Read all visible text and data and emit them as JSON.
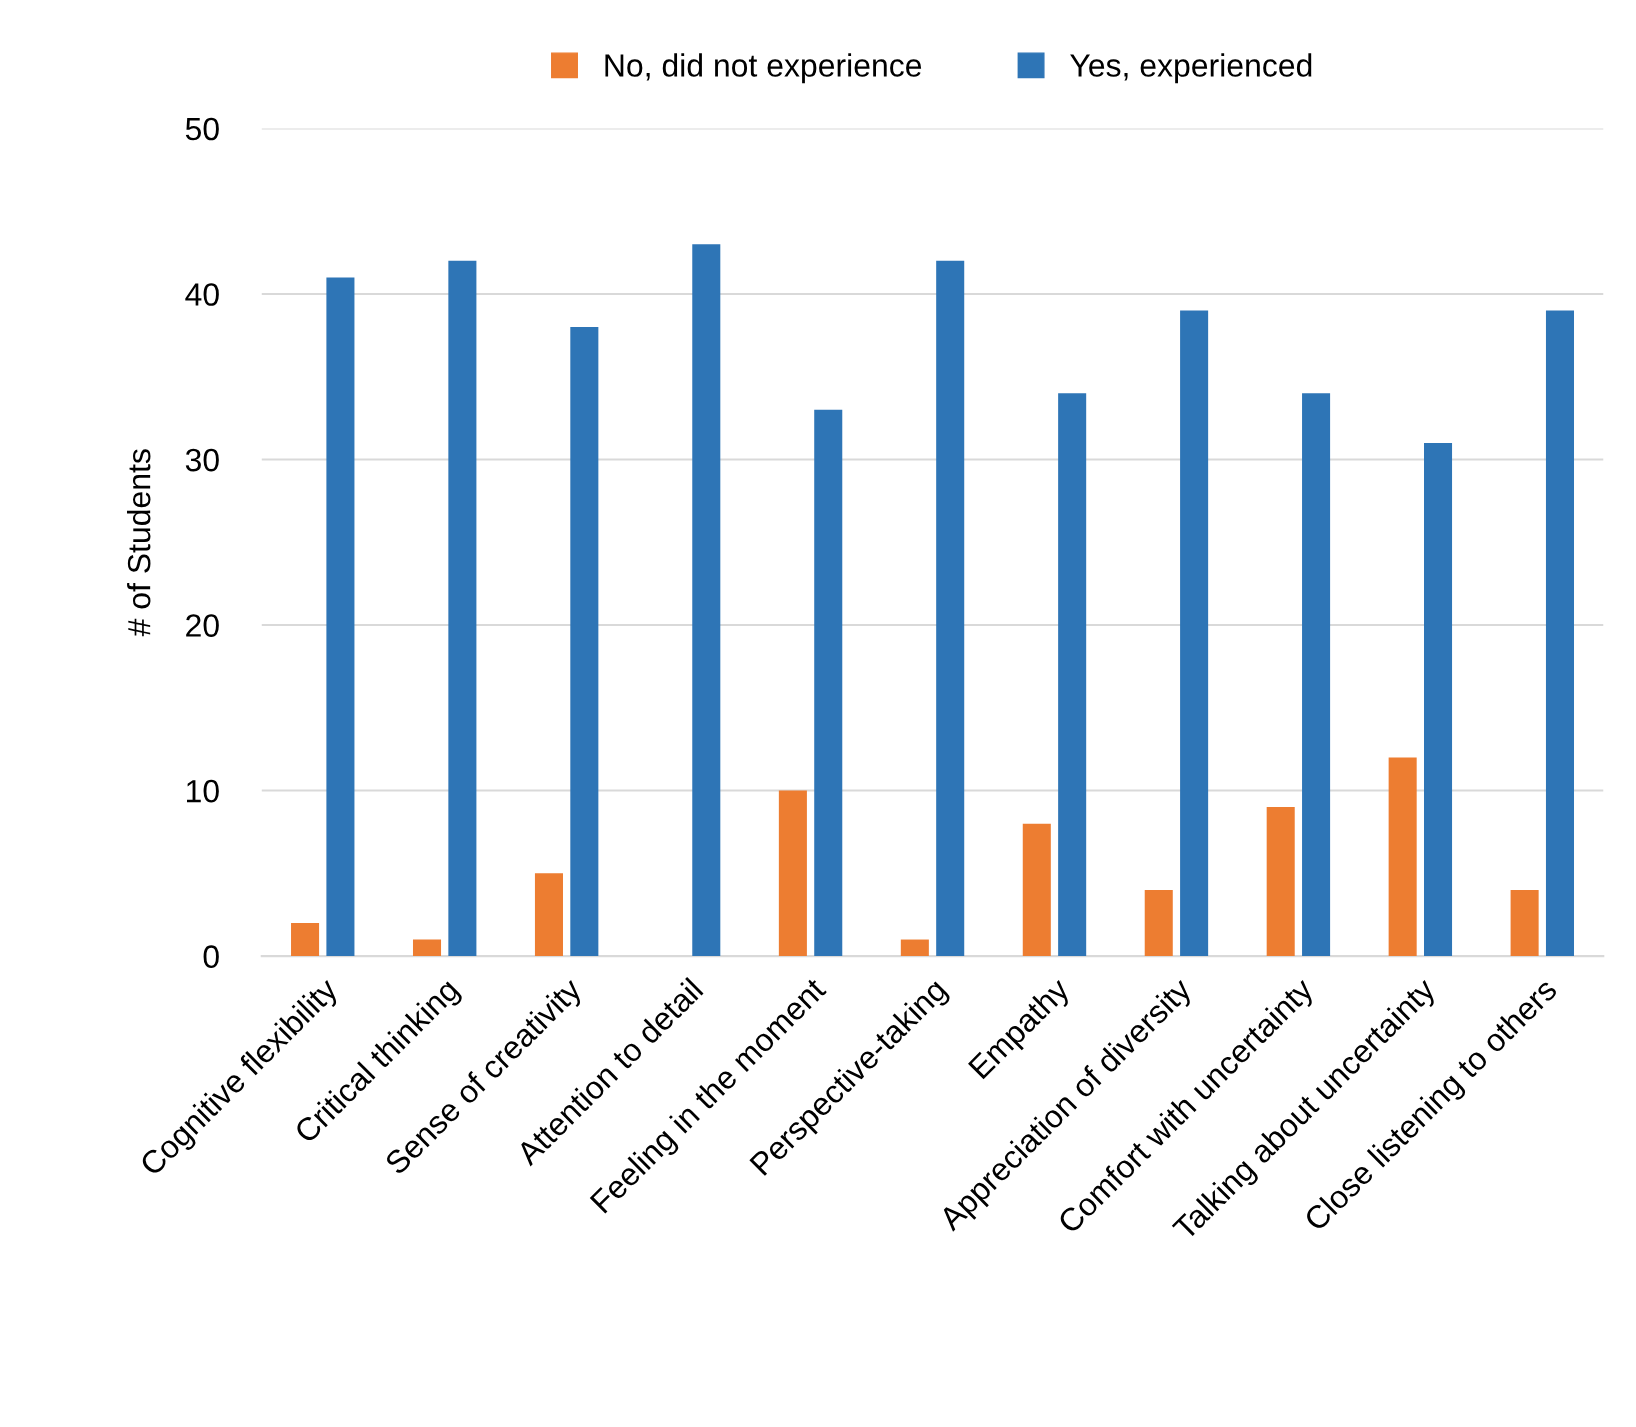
{
  "chart_data": {
    "type": "bar",
    "ylabel": "# of Students",
    "categories": [
      "Cognitive flexibility",
      "Critical thinking",
      "Sense of creativity",
      "Attention to detail",
      "Feeling in the moment",
      "Perspective-taking",
      "Empathy",
      "Appreciation of diversity",
      "Comfort with uncertainty",
      "Talking about uncertainty",
      "Close listening to others"
    ],
    "series": [
      {
        "name": "No, did not experience",
        "color": "#ed7d31",
        "values": [
          2,
          1,
          5,
          0,
          10,
          1,
          8,
          4,
          9,
          12,
          4
        ]
      },
      {
        "name": "Yes, experienced",
        "color": "#2e75b6",
        "values": [
          41,
          42,
          38,
          43,
          33,
          42,
          34,
          39,
          34,
          31,
          39
        ]
      }
    ],
    "ylim": [
      0,
      50
    ],
    "yticks": [
      0,
      10,
      20,
      30,
      40,
      50
    ],
    "grid": "y",
    "legend": "top"
  }
}
